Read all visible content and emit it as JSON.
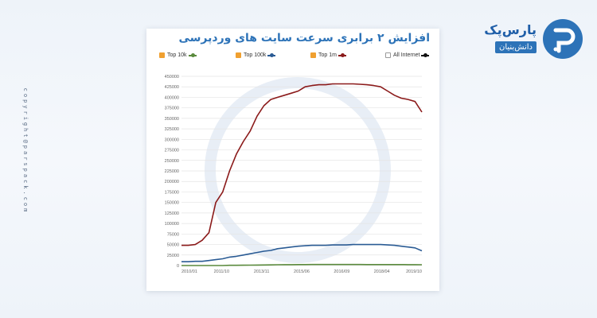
{
  "copyright": "copyright@parspack.com",
  "brand": {
    "name": "پارس‌پک",
    "subtitle": "دانش‌بنیان"
  },
  "chart_data": {
    "type": "line",
    "title": "افزایش ۲ برابری سرعت سایت های وردپرسی",
    "xlabel": "",
    "ylabel": "",
    "x_ticks": [
      "2010/01",
      "2011/10",
      "2013/11",
      "2015/06",
      "2016/09",
      "2018/04",
      "2019/10"
    ],
    "y_ticks": [
      0,
      25000,
      50000,
      75000,
      100000,
      125000,
      150000,
      175000,
      200000,
      225000,
      250000,
      275000,
      300000,
      325000,
      350000,
      375000,
      400000,
      425000,
      450000
    ],
    "ylim": [
      0,
      450000
    ],
    "grid": true,
    "legend_position": "top",
    "series": [
      {
        "name": "Top 10k",
        "color": "#5a8a3c",
        "checked": true,
        "values": [
          0,
          0,
          0,
          0,
          0,
          0,
          0,
          500,
          500,
          800,
          1000,
          1200,
          1400,
          1600,
          1800,
          2000,
          2000,
          2200,
          2200,
          2400,
          2400,
          2400,
          2400,
          2400,
          2400,
          2400,
          2400,
          2300,
          2300,
          2300,
          2300,
          2200,
          2200,
          2000,
          2000,
          1800
        ]
      },
      {
        "name": "Top 100k",
        "color": "#2a5b94",
        "checked": true,
        "values": [
          9000,
          9000,
          10000,
          10000,
          12000,
          14000,
          16000,
          20000,
          22000,
          25000,
          28000,
          31000,
          34000,
          36000,
          40000,
          42000,
          44000,
          46000,
          47000,
          48000,
          48000,
          48000,
          49000,
          49000,
          49000,
          50000,
          50000,
          50000,
          50000,
          50000,
          49000,
          48000,
          46000,
          44000,
          42000,
          35000
        ]
      },
      {
        "name": "Top 1m",
        "color": "#8b1a1a",
        "checked": true,
        "values": [
          48000,
          48000,
          50000,
          60000,
          78000,
          150000,
          175000,
          225000,
          265000,
          295000,
          320000,
          355000,
          380000,
          395000,
          400000,
          405000,
          410000,
          415000,
          425000,
          428000,
          430000,
          430000,
          432000,
          432000,
          432000,
          432000,
          431000,
          430000,
          428000,
          425000,
          415000,
          405000,
          398000,
          395000,
          390000,
          365000
        ]
      },
      {
        "name": "All Internet",
        "color": "#111111",
        "checked": false,
        "values": []
      }
    ]
  }
}
